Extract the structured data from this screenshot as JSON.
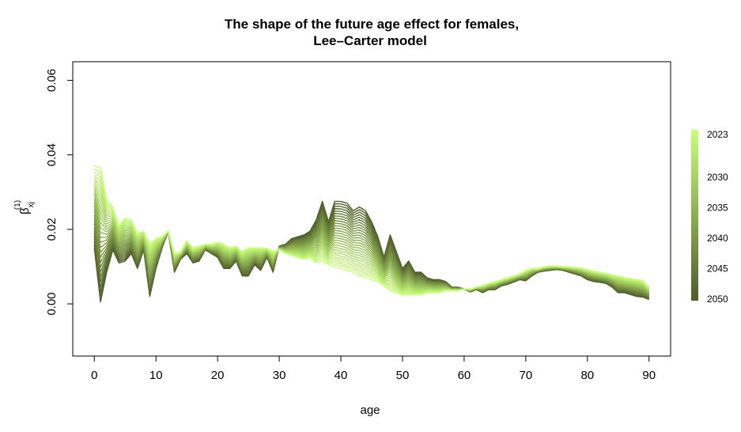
{
  "chart_data": {
    "type": "line",
    "title_line1": "The shape of the future age effect for females,",
    "title_line2": "Lee–Carter model",
    "xlabel": "age",
    "ylabel": {
      "base": "β",
      "subscript": "xj",
      "superscript": "(1)"
    },
    "xlim": [
      -3.5,
      93.5
    ],
    "ylim": [
      -0.014,
      0.065
    ],
    "x_ticks": [
      0,
      10,
      20,
      30,
      40,
      50,
      60,
      70,
      80,
      90
    ],
    "x_tick_labels": [
      "0",
      "10",
      "20",
      "30",
      "40",
      "50",
      "60",
      "70",
      "80",
      "90"
    ],
    "y_ticks": [
      0.0,
      0.02,
      0.04,
      0.06
    ],
    "y_tick_labels": [
      "0.00",
      "0.02",
      "0.04",
      "0.06"
    ],
    "first_year": 2023,
    "last_year": 2050,
    "color_first_year": "#c8ff78",
    "color_last_year": "#4f5c2a",
    "legend": {
      "placement": "right",
      "labels": [
        {
          "year": 2023,
          "text": "2023"
        },
        {
          "year": 2030,
          "text": "2030"
        },
        {
          "year": 2035,
          "text": "2035"
        },
        {
          "year": 2040,
          "text": "2040"
        },
        {
          "year": 2045,
          "text": "2045"
        },
        {
          "year": 2050,
          "text": "2050"
        }
      ]
    },
    "grid": false,
    "series": [
      {
        "year": 2023,
        "x": [
          0,
          1,
          2,
          3,
          4,
          5,
          6,
          7,
          8,
          9,
          10,
          11,
          12,
          13,
          14,
          15,
          16,
          17,
          18,
          19,
          20,
          21,
          22,
          23,
          24,
          25,
          26,
          27,
          28,
          29,
          30,
          31,
          32,
          33,
          34,
          35,
          36,
          37,
          38,
          39,
          40,
          41,
          42,
          43,
          44,
          45,
          46,
          47,
          48,
          49,
          50,
          51,
          52,
          53,
          54,
          55,
          56,
          57,
          58,
          59,
          60,
          61,
          62,
          63,
          64,
          65,
          66,
          67,
          68,
          69,
          70,
          71,
          72,
          73,
          74,
          75,
          76,
          77,
          78,
          79,
          80,
          81,
          82,
          83,
          84,
          85,
          86,
          87,
          88,
          89,
          90
        ],
        "y": [
          0.037,
          0.0365,
          0.028,
          0.026,
          0.021,
          0.023,
          0.0225,
          0.019,
          0.0195,
          0.016,
          0.0175,
          0.018,
          0.0195,
          0.0135,
          0.014,
          0.017,
          0.015,
          0.0155,
          0.016,
          0.016,
          0.0165,
          0.016,
          0.015,
          0.0155,
          0.014,
          0.015,
          0.015,
          0.015,
          0.015,
          0.014,
          0.0145,
          0.0135,
          0.013,
          0.0125,
          0.012,
          0.0125,
          0.011,
          0.0115,
          0.0105,
          0.01,
          0.0095,
          0.009,
          0.0085,
          0.0075,
          0.007,
          0.0065,
          0.006,
          0.005,
          0.0035,
          0.003,
          0.0025,
          0.0025,
          0.0025,
          0.0025,
          0.003,
          0.003,
          0.003,
          0.0035,
          0.0035,
          0.0035,
          0.004,
          0.004,
          0.0045,
          0.005,
          0.0055,
          0.006,
          0.0065,
          0.007,
          0.0075,
          0.008,
          0.009,
          0.0095,
          0.0095,
          0.01,
          0.0102,
          0.0102,
          0.01,
          0.01,
          0.0098,
          0.0096,
          0.0092,
          0.0088,
          0.0085,
          0.0082,
          0.0078,
          0.0075,
          0.007,
          0.0068,
          0.0065,
          0.0062,
          0.0045
        ]
      },
      {
        "year": 2050,
        "x": [
          0,
          1,
          2,
          3,
          4,
          5,
          6,
          7,
          8,
          9,
          10,
          11,
          12,
          13,
          14,
          15,
          16,
          17,
          18,
          19,
          20,
          21,
          22,
          23,
          24,
          25,
          26,
          27,
          28,
          29,
          30,
          31,
          32,
          33,
          34,
          35,
          36,
          37,
          38,
          39,
          40,
          41,
          42,
          43,
          44,
          45,
          46,
          47,
          48,
          49,
          50,
          51,
          52,
          53,
          54,
          55,
          56,
          57,
          58,
          59,
          60,
          61,
          62,
          63,
          64,
          65,
          66,
          67,
          68,
          69,
          70,
          71,
          72,
          73,
          74,
          75,
          76,
          77,
          78,
          79,
          80,
          81,
          82,
          83,
          84,
          85,
          86,
          87,
          88,
          89,
          90
        ],
        "y": [
          0.015,
          0.0005,
          0.0085,
          0.0145,
          0.011,
          0.0115,
          0.0135,
          0.0095,
          0.0145,
          0.002,
          0.0095,
          0.015,
          0.0195,
          0.0085,
          0.012,
          0.0135,
          0.011,
          0.0115,
          0.0145,
          0.0135,
          0.0125,
          0.0095,
          0.0095,
          0.0115,
          0.0075,
          0.0075,
          0.0105,
          0.009,
          0.0125,
          0.0085,
          0.0155,
          0.016,
          0.0175,
          0.018,
          0.0185,
          0.0195,
          0.0225,
          0.0275,
          0.022,
          0.0275,
          0.0275,
          0.027,
          0.025,
          0.026,
          0.025,
          0.022,
          0.018,
          0.0125,
          0.0185,
          0.014,
          0.0095,
          0.0115,
          0.0085,
          0.0085,
          0.007,
          0.0065,
          0.0065,
          0.006,
          0.0045,
          0.0045,
          0.004,
          0.0032,
          0.0038,
          0.003,
          0.0038,
          0.0038,
          0.0048,
          0.0052,
          0.0058,
          0.0065,
          0.0062,
          0.0075,
          0.0085,
          0.0088,
          0.009,
          0.0092,
          0.009,
          0.0085,
          0.008,
          0.0075,
          0.0065,
          0.006,
          0.0058,
          0.0055,
          0.0045,
          0.003,
          0.003,
          0.0025,
          0.002,
          0.0018,
          0.0012
        ]
      }
    ]
  }
}
